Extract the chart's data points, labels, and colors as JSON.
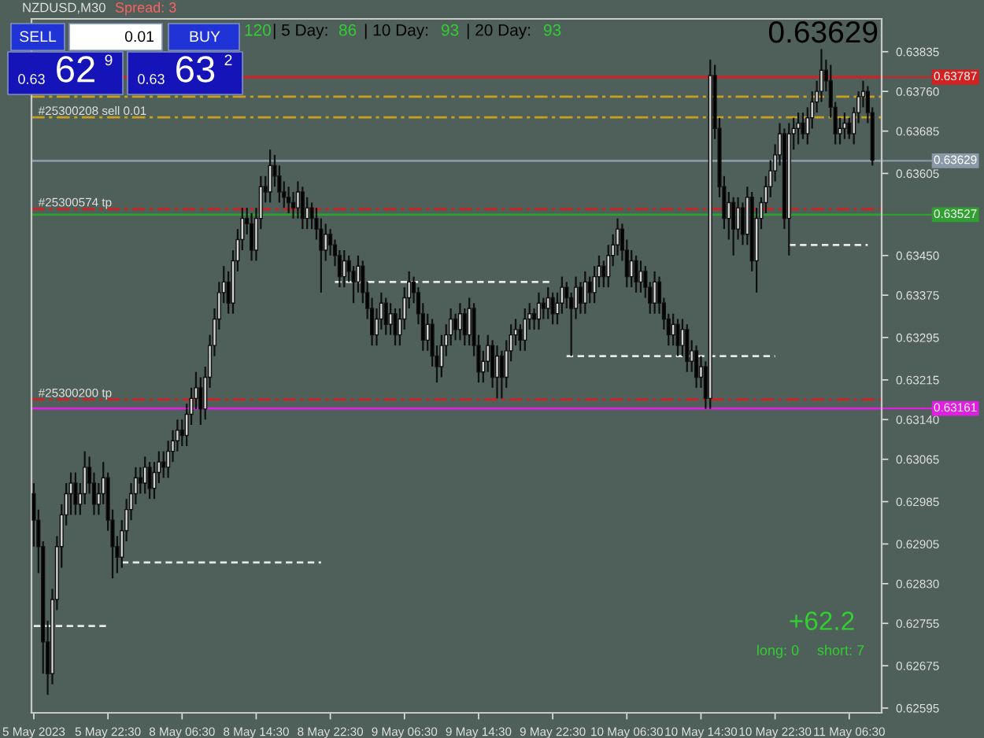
{
  "chart_data": {
    "type": "candlestick",
    "title": "NZDUSD,M30",
    "categories": [
      "5 May 2023",
      null,
      null,
      null,
      null,
      null,
      null,
      null,
      null,
      null,
      null,
      null,
      null,
      null,
      null,
      null,
      "5 May 22:30",
      null,
      null,
      null,
      null,
      null,
      null,
      null,
      null,
      null,
      null,
      null,
      null,
      null,
      null,
      null,
      "8 May 06:30",
      null,
      null,
      null,
      null,
      null,
      null,
      null,
      null,
      null,
      null,
      null,
      null,
      null,
      null,
      null,
      "8 May 14:30",
      null,
      null,
      null,
      null,
      null,
      null,
      null,
      null,
      null,
      null,
      null,
      null,
      null,
      null,
      null,
      "8 May 22:30",
      null,
      null,
      null,
      null,
      null,
      null,
      null,
      null,
      null,
      null,
      null,
      null,
      null,
      null,
      null,
      "9 May 06:30",
      null,
      null,
      null,
      null,
      null,
      null,
      null,
      null,
      null,
      null,
      null,
      null,
      null,
      null,
      null,
      "9 May 14:30",
      null,
      null,
      null,
      null,
      null,
      null,
      null,
      null,
      null,
      null,
      null,
      null,
      null,
      null,
      null,
      "9 May 22:30",
      null,
      null,
      null,
      null,
      null,
      null,
      null,
      null,
      null,
      null,
      null,
      null,
      null,
      null,
      null,
      "10 May 06:30",
      null,
      null,
      null,
      null,
      null,
      null,
      null,
      null,
      null,
      null,
      null,
      null,
      null,
      null,
      null,
      "10 May 14:30",
      null,
      null,
      null,
      null,
      null,
      null,
      null,
      null,
      null,
      null,
      null,
      null,
      null,
      null,
      null,
      "10 May 22:30",
      null,
      null,
      null,
      null,
      null,
      null,
      null,
      null,
      null,
      null,
      null,
      null,
      null,
      null,
      null,
      "11 May 06:30",
      null,
      null,
      null,
      null,
      null
    ],
    "ohlc": [
      [
        0.63,
        0.6302,
        0.629,
        0.6295
      ],
      [
        0.6295,
        0.6297,
        0.6285,
        0.629
      ],
      [
        0.629,
        0.6291,
        0.6266,
        0.6272
      ],
      [
        0.6272,
        0.6276,
        0.6262,
        0.6266
      ],
      [
        0.6266,
        0.6282,
        0.6264,
        0.628
      ],
      [
        0.628,
        0.6292,
        0.6278,
        0.629
      ],
      [
        0.629,
        0.6298,
        0.6286,
        0.6296
      ],
      [
        0.6296,
        0.6302,
        0.6294,
        0.63
      ],
      [
        0.63,
        0.6304,
        0.6296,
        0.6302
      ],
      [
        0.6302,
        0.6304,
        0.6296,
        0.6298
      ],
      [
        0.6298,
        0.6302,
        0.6296,
        0.63
      ],
      [
        0.63,
        0.6308,
        0.6298,
        0.6305
      ],
      [
        0.6305,
        0.6307,
        0.63,
        0.6302
      ],
      [
        0.6302,
        0.6304,
        0.6296,
        0.6298
      ],
      [
        0.6298,
        0.6302,
        0.6296,
        0.63
      ],
      [
        0.63,
        0.6306,
        0.6298,
        0.6303
      ],
      [
        0.6303,
        0.6304,
        0.6293,
        0.6295
      ],
      [
        0.6295,
        0.6297,
        0.6284,
        0.629
      ],
      [
        0.629,
        0.6292,
        0.6285,
        0.6288
      ],
      [
        0.6288,
        0.6295,
        0.6286,
        0.6293
      ],
      [
        0.6293,
        0.6299,
        0.6291,
        0.6297
      ],
      [
        0.6297,
        0.6302,
        0.6295,
        0.63
      ],
      [
        0.63,
        0.6305,
        0.6298,
        0.6303
      ],
      [
        0.6303,
        0.6305,
        0.63,
        0.6302
      ],
      [
        0.6302,
        0.6307,
        0.63,
        0.6305
      ],
      [
        0.6305,
        0.6306,
        0.6299,
        0.6301
      ],
      [
        0.6301,
        0.6306,
        0.6299,
        0.6304
      ],
      [
        0.6304,
        0.6308,
        0.6302,
        0.6306
      ],
      [
        0.6306,
        0.6308,
        0.6303,
        0.6305
      ],
      [
        0.6305,
        0.631,
        0.6303,
        0.6308
      ],
      [
        0.6308,
        0.6312,
        0.6306,
        0.631
      ],
      [
        0.631,
        0.6314,
        0.6308,
        0.6312
      ],
      [
        0.6312,
        0.6314,
        0.6309,
        0.6311
      ],
      [
        0.6311,
        0.6317,
        0.6309,
        0.6315
      ],
      [
        0.6315,
        0.632,
        0.6313,
        0.6318
      ],
      [
        0.6318,
        0.6323,
        0.6316,
        0.632
      ],
      [
        0.632,
        0.6322,
        0.6313,
        0.6316
      ],
      [
        0.6316,
        0.6324,
        0.6314,
        0.6322
      ],
      [
        0.6322,
        0.633,
        0.632,
        0.6328
      ],
      [
        0.6328,
        0.6335,
        0.6326,
        0.6333
      ],
      [
        0.6333,
        0.634,
        0.6331,
        0.6338
      ],
      [
        0.6338,
        0.6343,
        0.6336,
        0.634
      ],
      [
        0.634,
        0.6342,
        0.6334,
        0.6336
      ],
      [
        0.6336,
        0.6346,
        0.6334,
        0.6344
      ],
      [
        0.6344,
        0.635,
        0.6342,
        0.6348
      ],
      [
        0.6348,
        0.6354,
        0.6346,
        0.6352
      ],
      [
        0.6352,
        0.6354,
        0.6349,
        0.6351
      ],
      [
        0.6351,
        0.6353,
        0.6344,
        0.6346
      ],
      [
        0.6346,
        0.6354,
        0.6344,
        0.6352
      ],
      [
        0.6352,
        0.636,
        0.635,
        0.6358
      ],
      [
        0.6358,
        0.636,
        0.6355,
        0.6357
      ],
      [
        0.6357,
        0.6365,
        0.6355,
        0.6362
      ],
      [
        0.6362,
        0.6364,
        0.6358,
        0.636
      ],
      [
        0.636,
        0.6362,
        0.6355,
        0.6357
      ],
      [
        0.6357,
        0.6359,
        0.6354,
        0.6356
      ],
      [
        0.6356,
        0.6358,
        0.6353,
        0.6355
      ],
      [
        0.6355,
        0.6357,
        0.6352,
        0.6354
      ],
      [
        0.6354,
        0.6359,
        0.6352,
        0.6357
      ],
      [
        0.6357,
        0.6358,
        0.635,
        0.6352
      ],
      [
        0.6352,
        0.6356,
        0.635,
        0.6354
      ],
      [
        0.6354,
        0.6355,
        0.635,
        0.6352
      ],
      [
        0.6352,
        0.6354,
        0.6348,
        0.635
      ],
      [
        0.635,
        0.6352,
        0.6338,
        0.6346
      ],
      [
        0.6346,
        0.6351,
        0.6344,
        0.6349
      ],
      [
        0.6349,
        0.635,
        0.6345,
        0.6347
      ],
      [
        0.6347,
        0.6348,
        0.6343,
        0.6345
      ],
      [
        0.6345,
        0.6346,
        0.6339,
        0.6341
      ],
      [
        0.6341,
        0.6346,
        0.6339,
        0.6344
      ],
      [
        0.6344,
        0.6345,
        0.634,
        0.6342
      ],
      [
        0.6342,
        0.6343,
        0.6336,
        0.634
      ],
      [
        0.634,
        0.6345,
        0.6338,
        0.6343
      ],
      [
        0.6343,
        0.6344,
        0.6336,
        0.6338
      ],
      [
        0.6338,
        0.634,
        0.6333,
        0.6335
      ],
      [
        0.6335,
        0.6337,
        0.6328,
        0.633
      ],
      [
        0.633,
        0.6335,
        0.6328,
        0.6333
      ],
      [
        0.6333,
        0.6338,
        0.6331,
        0.6336
      ],
      [
        0.6336,
        0.6337,
        0.633,
        0.6332
      ],
      [
        0.6332,
        0.6336,
        0.633,
        0.6334
      ],
      [
        0.6334,
        0.6335,
        0.6328,
        0.633
      ],
      [
        0.633,
        0.6335,
        0.6328,
        0.6333
      ],
      [
        0.6333,
        0.6339,
        0.6331,
        0.6337
      ],
      [
        0.6337,
        0.6342,
        0.6335,
        0.634
      ],
      [
        0.634,
        0.6341,
        0.6336,
        0.6338
      ],
      [
        0.6338,
        0.6339,
        0.6332,
        0.6334
      ],
      [
        0.6334,
        0.6336,
        0.6327,
        0.6329
      ],
      [
        0.6329,
        0.6334,
        0.6327,
        0.6332
      ],
      [
        0.6332,
        0.6333,
        0.6324,
        0.6326
      ],
      [
        0.6326,
        0.6328,
        0.6321,
        0.6324
      ],
      [
        0.6324,
        0.633,
        0.6322,
        0.6328
      ],
      [
        0.6328,
        0.6332,
        0.6326,
        0.633
      ],
      [
        0.633,
        0.6335,
        0.6328,
        0.6333
      ],
      [
        0.6333,
        0.6334,
        0.6329,
        0.6331
      ],
      [
        0.6331,
        0.6336,
        0.6329,
        0.6334
      ],
      [
        0.6334,
        0.6335,
        0.6328,
        0.633
      ],
      [
        0.633,
        0.6337,
        0.6328,
        0.6335
      ],
      [
        0.6335,
        0.6336,
        0.6326,
        0.6328
      ],
      [
        0.6328,
        0.633,
        0.6321,
        0.6323
      ],
      [
        0.6323,
        0.6327,
        0.6321,
        0.6325
      ],
      [
        0.6325,
        0.633,
        0.6323,
        0.6328
      ],
      [
        0.6328,
        0.6329,
        0.632,
        0.6322
      ],
      [
        0.6322,
        0.6328,
        0.6318,
        0.6326
      ],
      [
        0.6326,
        0.6327,
        0.6318,
        0.6322
      ],
      [
        0.6322,
        0.6329,
        0.632,
        0.6327
      ],
      [
        0.6327,
        0.6332,
        0.6325,
        0.633
      ],
      [
        0.633,
        0.6333,
        0.6328,
        0.6331
      ],
      [
        0.6331,
        0.6332,
        0.6327,
        0.6329
      ],
      [
        0.6329,
        0.6335,
        0.6327,
        0.6333
      ],
      [
        0.6333,
        0.6336,
        0.6331,
        0.6334
      ],
      [
        0.6334,
        0.6335,
        0.6331,
        0.6333
      ],
      [
        0.6333,
        0.6338,
        0.6331,
        0.6336
      ],
      [
        0.6336,
        0.6337,
        0.6333,
        0.6335
      ],
      [
        0.6335,
        0.6339,
        0.6333,
        0.6337
      ],
      [
        0.6337,
        0.6338,
        0.6332,
        0.6334
      ],
      [
        0.6334,
        0.6338,
        0.6332,
        0.6336
      ],
      [
        0.6336,
        0.6341,
        0.6334,
        0.6339
      ],
      [
        0.6339,
        0.634,
        0.6335,
        0.6337
      ],
      [
        0.6337,
        0.6338,
        0.6326,
        0.6335
      ],
      [
        0.6335,
        0.6341,
        0.6333,
        0.6339
      ],
      [
        0.6339,
        0.634,
        0.6334,
        0.6336
      ],
      [
        0.6336,
        0.6342,
        0.6334,
        0.634
      ],
      [
        0.634,
        0.6341,
        0.6336,
        0.6338
      ],
      [
        0.6338,
        0.6343,
        0.6336,
        0.6341
      ],
      [
        0.6341,
        0.6345,
        0.6339,
        0.6343
      ],
      [
        0.6343,
        0.6344,
        0.6339,
        0.6341
      ],
      [
        0.6341,
        0.6347,
        0.6339,
        0.6345
      ],
      [
        0.6345,
        0.6349,
        0.6343,
        0.6347
      ],
      [
        0.6347,
        0.6352,
        0.6345,
        0.635
      ],
      [
        0.635,
        0.6351,
        0.6344,
        0.6346
      ],
      [
        0.6346,
        0.6348,
        0.6339,
        0.6341
      ],
      [
        0.6341,
        0.6346,
        0.6339,
        0.6344
      ],
      [
        0.6344,
        0.6345,
        0.6338,
        0.634
      ],
      [
        0.634,
        0.6344,
        0.6338,
        0.6342
      ],
      [
        0.6342,
        0.6343,
        0.6337,
        0.6339
      ],
      [
        0.6339,
        0.634,
        0.6334,
        0.6336
      ],
      [
        0.6336,
        0.6342,
        0.6334,
        0.634
      ],
      [
        0.634,
        0.6341,
        0.6334,
        0.6336
      ],
      [
        0.6336,
        0.6337,
        0.6331,
        0.6333
      ],
      [
        0.6333,
        0.6334,
        0.6328,
        0.633
      ],
      [
        0.633,
        0.6334,
        0.6328,
        0.6332
      ],
      [
        0.6332,
        0.6333,
        0.6326,
        0.6328
      ],
      [
        0.6328,
        0.6333,
        0.6326,
        0.6331
      ],
      [
        0.6331,
        0.6332,
        0.6323,
        0.6325
      ],
      [
        0.6325,
        0.6329,
        0.6323,
        0.6327
      ],
      [
        0.6327,
        0.6328,
        0.632,
        0.6322
      ],
      [
        0.6322,
        0.6326,
        0.632,
        0.6324
      ],
      [
        0.6324,
        0.6325,
        0.6316,
        0.6318
      ],
      [
        0.6318,
        0.6382,
        0.6316,
        0.6379
      ],
      [
        0.6379,
        0.6381,
        0.6367,
        0.6369
      ],
      [
        0.6369,
        0.6371,
        0.6356,
        0.6358
      ],
      [
        0.6358,
        0.636,
        0.635,
        0.6352
      ],
      [
        0.6352,
        0.6357,
        0.6348,
        0.6355
      ],
      [
        0.6355,
        0.6356,
        0.6345,
        0.635
      ],
      [
        0.635,
        0.6356,
        0.6348,
        0.6354
      ],
      [
        0.6354,
        0.6355,
        0.6347,
        0.6349
      ],
      [
        0.6349,
        0.6358,
        0.6347,
        0.6356
      ],
      [
        0.6356,
        0.6357,
        0.6342,
        0.6344
      ],
      [
        0.6344,
        0.6354,
        0.6338,
        0.6352
      ],
      [
        0.6352,
        0.6356,
        0.635,
        0.6355
      ],
      [
        0.6355,
        0.636,
        0.6353,
        0.6358
      ],
      [
        0.6358,
        0.6363,
        0.6356,
        0.6361
      ],
      [
        0.6361,
        0.6366,
        0.6359,
        0.6364
      ],
      [
        0.6364,
        0.637,
        0.6362,
        0.6368
      ],
      [
        0.6368,
        0.6369,
        0.635,
        0.6352
      ],
      [
        0.6352,
        0.637,
        0.6345,
        0.6368
      ],
      [
        0.6368,
        0.6371,
        0.6365,
        0.6369
      ],
      [
        0.6369,
        0.6372,
        0.6366,
        0.637
      ],
      [
        0.637,
        0.6372,
        0.6367,
        0.6368
      ],
      [
        0.6368,
        0.6373,
        0.6366,
        0.6371
      ],
      [
        0.6371,
        0.6376,
        0.6369,
        0.6374
      ],
      [
        0.6374,
        0.6378,
        0.6372,
        0.6376
      ],
      [
        0.6376,
        0.6384,
        0.6374,
        0.638
      ],
      [
        0.638,
        0.6382,
        0.6376,
        0.6378
      ],
      [
        0.6378,
        0.6381,
        0.6371,
        0.6373
      ],
      [
        0.6373,
        0.6374,
        0.6366,
        0.6368
      ],
      [
        0.6368,
        0.6371,
        0.6366,
        0.6369
      ],
      [
        0.6369,
        0.6372,
        0.6367,
        0.637
      ],
      [
        0.637,
        0.6371,
        0.6367,
        0.6368
      ],
      [
        0.6368,
        0.6373,
        0.6366,
        0.6372
      ],
      [
        0.6372,
        0.6376,
        0.637,
        0.6375
      ],
      [
        0.6375,
        0.6378,
        0.6373,
        0.6376
      ],
      [
        0.6376,
        0.6377,
        0.637,
        0.6372
      ],
      [
        0.6372,
        0.6373,
        0.6362,
        0.6363
      ]
    ],
    "series": [
      {
        "type": "line",
        "color": "#e8e8e8",
        "line_style": "dashed",
        "values": [
          0.6275,
          0.6275,
          0.6275,
          0.6275,
          0.6275,
          0.6275,
          0.6275,
          0.6275,
          0.6275,
          0.6275,
          0.6275,
          0.6275,
          0.6275,
          0.6275,
          0.6275,
          0.6275,
          0.6275,
          null,
          null,
          0.6287,
          0.6287,
          0.6287,
          0.6287,
          0.6287,
          0.6287,
          0.6287,
          0.6287,
          0.6287,
          0.6287,
          0.6287,
          0.6287,
          0.6287,
          0.6287,
          0.6287,
          0.6287,
          0.6287,
          0.6287,
          0.6287,
          0.6287,
          0.6287,
          0.6287,
          0.6287,
          0.6287,
          0.6287,
          0.6287,
          0.6287,
          0.6287,
          0.6287,
          0.6287,
          0.6287,
          0.6287,
          0.6287,
          0.6287,
          0.6287,
          0.6287,
          0.6287,
          0.6287,
          0.6287,
          0.6287,
          0.6287,
          0.6287,
          0.6287,
          0.6287,
          null,
          null,
          0.634,
          0.634,
          0.634,
          0.634,
          0.634,
          0.634,
          0.634,
          0.634,
          0.634,
          0.634,
          0.634,
          0.634,
          0.634,
          0.634,
          0.634,
          0.634,
          0.634,
          0.634,
          0.634,
          0.634,
          0.634,
          0.634,
          0.634,
          0.634,
          0.634,
          0.634,
          0.634,
          0.634,
          0.634,
          0.634,
          0.634,
          0.634,
          0.634,
          0.634,
          0.634,
          0.634,
          0.634,
          0.634,
          0.634,
          0.634,
          0.634,
          0.634,
          0.634,
          0.634,
          0.634,
          0.634,
          0.634,
          0.634,
          null,
          null,
          0.6326,
          0.6326,
          0.6326,
          0.6326,
          0.6326,
          0.6326,
          0.6326,
          0.6326,
          0.6326,
          0.6326,
          0.6326,
          0.6326,
          0.6326,
          0.6326,
          0.6326,
          0.6326,
          0.6326,
          0.6326,
          0.6326,
          0.6326,
          0.6326,
          0.6326,
          0.6326,
          0.6326,
          0.6326,
          0.6326,
          0.6326,
          0.6326,
          0.6326,
          0.6326,
          0.6326,
          0.6326,
          0.6326,
          0.6326,
          0.6326,
          0.6326,
          0.6326,
          0.6326,
          0.6326,
          0.6326,
          0.6326,
          0.6326,
          0.6326,
          0.6326,
          0.6326,
          0.6326,
          null,
          null,
          0.6347,
          0.6347,
          0.6347,
          0.6347,
          0.6347,
          0.6347,
          0.6347,
          0.6347,
          0.6347,
          0.6347,
          0.6347,
          0.6347,
          0.6347,
          0.6347,
          0.6347,
          0.6347,
          0.6347,
          0.6347,
          null
        ]
      }
    ],
    "ylim": [
      0.62586,
      0.63897
    ],
    "yticks": [
      0.62595,
      0.62675,
      0.62755,
      {
        "value": 0.6283,
        "label": "0.62830"
      },
      0.62905,
      0.62985,
      0.63065,
      {
        "value": 0.6314,
        "label": "0.63140"
      },
      0.63215,
      0.63295,
      0.63375,
      {
        "value": 0.6345,
        "label": "0.63450"
      },
      0.63605,
      0.63685,
      {
        "value": 0.6376,
        "label": "0.63760"
      },
      0.63835
    ],
    "ref_lines": [
      {
        "axis": "y",
        "value": 0.63787,
        "label": "0.63787",
        "color": "#d42020",
        "line_style": "solid"
      },
      {
        "axis": "y",
        "value": 0.6375,
        "color": "#c8a020",
        "line_style": "dashdot"
      },
      {
        "axis": "y",
        "value": 0.63711,
        "label": "#25300208 sell 0.01",
        "color": "#c8a020",
        "line_style": "dashdot"
      },
      {
        "axis": "y",
        "value": 0.63629,
        "label": "0.63629",
        "color": "#8a98a8",
        "line_style": "solid"
      },
      {
        "axis": "y",
        "value": 0.63538,
        "label": "#25300574 tp",
        "color": "#d42020",
        "line_style": "dashdot"
      },
      {
        "axis": "y",
        "value": 0.63527,
        "label": "0.63527",
        "color": "#30a030",
        "line_style": "solid"
      },
      {
        "axis": "y",
        "value": 0.63178,
        "label": "#25300200 tp",
        "color": "#d42020",
        "line_style": "dashdot"
      },
      {
        "axis": "y",
        "value": 0.63161,
        "label": "0.63161",
        "color": "#e020e0",
        "line_style": "solid"
      }
    ],
    "annotations": [
      "0.63629",
      "Spread: 3",
      "120",
      "| 5 Day:",
      "86",
      "| 10 Day:",
      "93",
      "| 20 Day:",
      "93",
      "SELL",
      "0.01",
      "BUY",
      "0.63",
      "62",
      "9",
      "0.63",
      "63",
      "2",
      "+62.2",
      "long: 0",
      "short: 7"
    ],
    "grid": false
  }
}
